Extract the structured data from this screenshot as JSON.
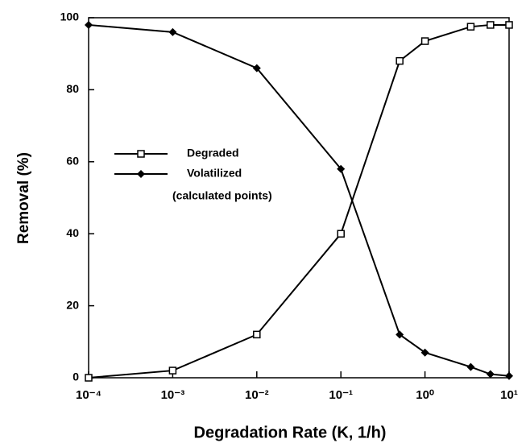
{
  "chart_data": {
    "type": "line",
    "xlabel": "Degradation  Rate (K, 1/h)",
    "ylabel": "Removal (%)",
    "x": [
      0.0001,
      0.001,
      0.01,
      0.1,
      0.5,
      1,
      3.5,
      6,
      10
    ],
    "series": [
      {
        "name": "Degraded",
        "color": "#000000",
        "marker": "square",
        "values": [
          0,
          2,
          12,
          40,
          88,
          93.5,
          97.5,
          98,
          98
        ]
      },
      {
        "name": "Volatilized",
        "color": "#000000",
        "marker": "diamond",
        "values": [
          98,
          96,
          86,
          58,
          12,
          7,
          3,
          1,
          0.5
        ]
      }
    ],
    "legend_note": "(calculated points)",
    "xscale": "log",
    "xlim": [
      0.0001,
      10
    ],
    "ylim": [
      0,
      100
    ],
    "xticks": [
      {
        "value": 0.0001,
        "label": "10⁻⁴"
      },
      {
        "value": 0.001,
        "label": "10⁻³"
      },
      {
        "value": 0.01,
        "label": "10⁻²"
      },
      {
        "value": 0.1,
        "label": "10⁻¹"
      },
      {
        "value": 1,
        "label": "10⁰"
      },
      {
        "value": 10,
        "label": "10¹"
      }
    ],
    "yticks": [
      0,
      20,
      40,
      60,
      80,
      100
    ]
  }
}
